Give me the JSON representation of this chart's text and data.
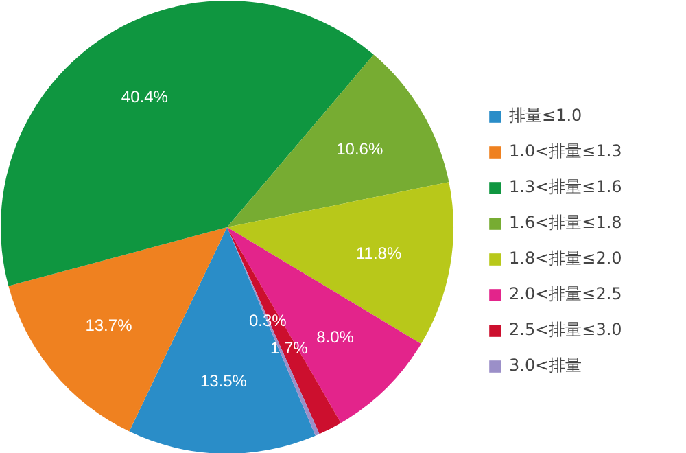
{
  "chart_data": {
    "type": "pie",
    "categories": [
      "排量≤1.0",
      "1.0<排量≤1.3",
      "1.3<排量≤1.6",
      "1.6<排量≤1.8",
      "1.8<排量≤2.0",
      "2.0<排量≤2.5",
      "2.5<排量≤3.0",
      "3.0<排量"
    ],
    "values": [
      13.5,
      13.7,
      40.4,
      10.6,
      11.8,
      8.0,
      1.7,
      0.3
    ],
    "value_labels": [
      "13.5%",
      "13.7%",
      "40.4%",
      "10.6%",
      "11.8%",
      "8.0%",
      "1.7%",
      "0.3%"
    ],
    "colors": [
      "#2a8dc8",
      "#ef8120",
      "#0f9640",
      "#77ac32",
      "#b8c81a",
      "#e3248b",
      "#cc0f2e",
      "#9b8fc8"
    ],
    "legend": "right"
  }
}
